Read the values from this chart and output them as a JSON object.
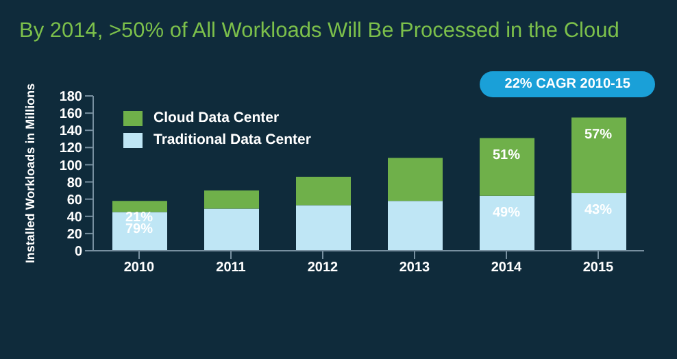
{
  "chart_data": {
    "type": "bar",
    "stacked": true,
    "title": "By 2014, >50% of All Workloads Will Be Processed in the Cloud",
    "ylabel": "Installed Workloads in Millions",
    "annotations": [
      "22% CAGR 2010-15",
      {
        "text": "21%",
        "x": "2010",
        "y": 58
      },
      {
        "text": "79%",
        "x": "2010",
        "y": 45
      },
      {
        "text": "51%",
        "x": "2014",
        "y": 131
      },
      {
        "text": "49%",
        "x": "2014",
        "y": 64
      },
      {
        "text": "57%",
        "x": "2015",
        "y": 155
      },
      {
        "text": "43%",
        "x": "2015",
        "y": 67
      }
    ],
    "categories": [
      "2010",
      "2011",
      "2012",
      "2013",
      "2014",
      "2015"
    ],
    "series": [
      {
        "name": "Traditional Data Center",
        "color": "#bfe6f5",
        "values": [
          45,
          49,
          53,
          58,
          64,
          67
        ]
      },
      {
        "name": "Cloud Data Center",
        "color": "#6fb04a",
        "values": [
          13,
          21,
          33,
          50,
          67,
          88
        ]
      }
    ],
    "ylim": [
      0,
      180
    ],
    "yticks": [
      0,
      20,
      40,
      60,
      80,
      100,
      120,
      140,
      160,
      180
    ],
    "grid": false,
    "legend": "top left"
  }
}
